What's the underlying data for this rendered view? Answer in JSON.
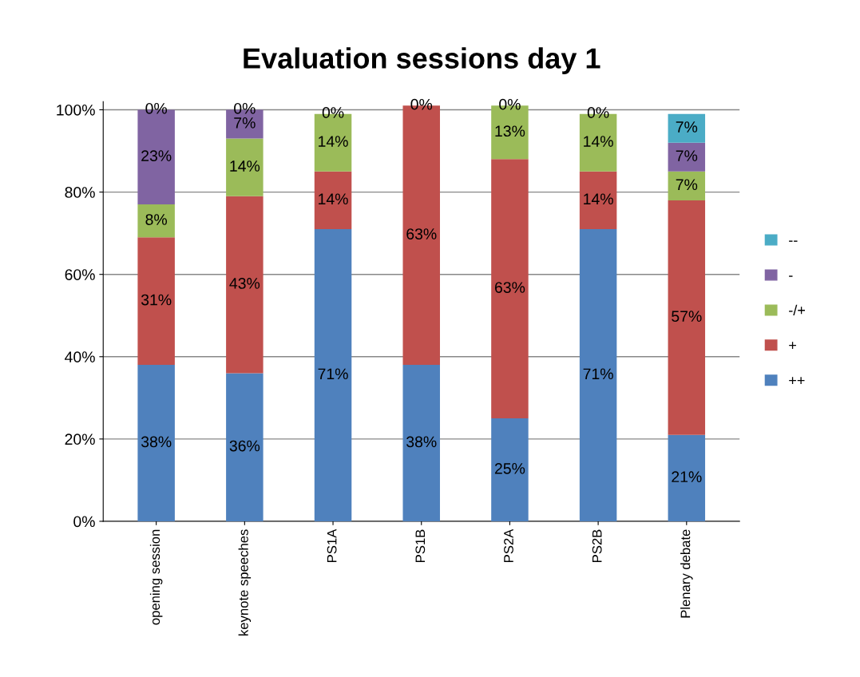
{
  "chart_data": {
    "type": "bar",
    "stacked": true,
    "title": "Evaluation sessions day 1",
    "categories": [
      "opening session",
      "keynote speeches",
      "PS1A",
      "PS1B",
      "PS2A",
      "PS2B",
      "Plenary debate"
    ],
    "series": [
      {
        "name": "++",
        "color": "#4f81bd",
        "values": [
          38,
          36,
          71,
          38,
          25,
          71,
          21
        ],
        "value_labels": [
          "38%",
          "36%",
          "71%",
          "38%",
          "25%",
          "71%",
          "21%"
        ]
      },
      {
        "name": "+",
        "color": "#c0504d",
        "values": [
          31,
          43,
          14,
          63,
          63,
          14,
          57
        ],
        "value_labels": [
          "31%",
          "43%",
          "14%",
          "63%",
          "63%",
          "14%",
          "57%"
        ]
      },
      {
        "name": "-/+",
        "color": "#9bbb59",
        "values": [
          8,
          14,
          14,
          0,
          13,
          14,
          7
        ],
        "value_labels": [
          "8%",
          "14%",
          "14%",
          null,
          "13%",
          "14%",
          "7%"
        ]
      },
      {
        "name": "-",
        "color": "#8064a2",
        "values": [
          23,
          7,
          0,
          0,
          0,
          0,
          7
        ],
        "value_labels": [
          "23%",
          "7%",
          null,
          null,
          null,
          null,
          "7%"
        ]
      },
      {
        "name": "--",
        "color": "#4bacc6",
        "values": [
          0,
          0,
          0,
          0,
          0,
          0,
          7
        ],
        "value_labels": [
          "0%",
          "0%",
          "0%",
          "0%",
          "0%",
          "0%",
          "7%"
        ]
      }
    ],
    "ylim": [
      0,
      102
    ],
    "yticks": [
      {
        "value": 0,
        "label": "0%"
      },
      {
        "value": 20,
        "label": "20%"
      },
      {
        "value": 40,
        "label": "40%"
      },
      {
        "value": 60,
        "label": "60%"
      },
      {
        "value": 80,
        "label": "80%"
      },
      {
        "value": 100,
        "label": "100%"
      }
    ],
    "grid": "y",
    "legend": "right"
  }
}
